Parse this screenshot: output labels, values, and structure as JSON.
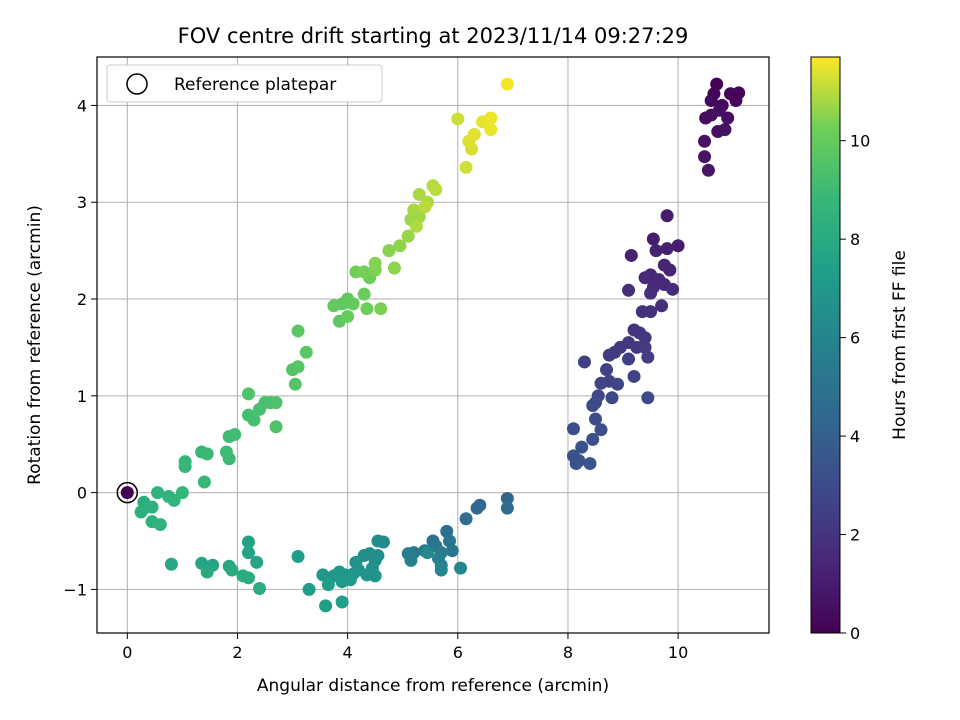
{
  "chart_data": {
    "type": "scatter",
    "title": "FOV centre drift starting at 2023/11/14 09:27:29",
    "xlabel": "Angular distance from reference (arcmin)",
    "ylabel": "Rotation from reference (arcmin)",
    "xlim": [
      -0.55,
      11.65
    ],
    "ylim": [
      -1.45,
      4.5
    ],
    "xticks": [
      0,
      2,
      4,
      6,
      8,
      10
    ],
    "yticks": [
      -1,
      0,
      1,
      2,
      3,
      4
    ],
    "grid": true,
    "legend": {
      "location": "upper-left",
      "entries": [
        "Reference platepar"
      ]
    },
    "colorbar": {
      "label": "Hours from first FF file",
      "min": 0,
      "max": 11.7,
      "ticks": [
        0,
        2,
        4,
        6,
        8,
        10
      ],
      "colormap": "viridis"
    },
    "reference_point": {
      "x": 0,
      "y": 0
    },
    "points": [
      {
        "x": 10.7,
        "y": 4.22,
        "c": 0.1
      },
      {
        "x": 10.65,
        "y": 4.12,
        "c": 0.15
      },
      {
        "x": 10.95,
        "y": 4.12,
        "c": 0.2
      },
      {
        "x": 11.05,
        "y": 4.05,
        "c": 0.25
      },
      {
        "x": 10.6,
        "y": 4.05,
        "c": 0.3
      },
      {
        "x": 10.8,
        "y": 4.0,
        "c": 0.35
      },
      {
        "x": 10.5,
        "y": 3.87,
        "c": 0.4
      },
      {
        "x": 10.75,
        "y": 3.95,
        "c": 0.45
      },
      {
        "x": 10.9,
        "y": 3.87,
        "c": 0.5
      },
      {
        "x": 10.72,
        "y": 3.73,
        "c": 0.55
      },
      {
        "x": 10.85,
        "y": 3.75,
        "c": 0.6
      },
      {
        "x": 10.48,
        "y": 3.63,
        "c": 0.65
      },
      {
        "x": 10.48,
        "y": 3.47,
        "c": 0.7
      },
      {
        "x": 10.55,
        "y": 3.33,
        "c": 0.75
      },
      {
        "x": 11.1,
        "y": 4.13,
        "c": 0.2
      },
      {
        "x": 10.6,
        "y": 3.9,
        "c": 0.5
      },
      {
        "x": 9.8,
        "y": 2.86,
        "c": 1.0
      },
      {
        "x": 9.55,
        "y": 2.62,
        "c": 1.05
      },
      {
        "x": 10.0,
        "y": 2.55,
        "c": 1.1
      },
      {
        "x": 9.8,
        "y": 2.52,
        "c": 1.15
      },
      {
        "x": 9.6,
        "y": 2.5,
        "c": 1.2
      },
      {
        "x": 9.15,
        "y": 2.45,
        "c": 1.25
      },
      {
        "x": 9.75,
        "y": 2.35,
        "c": 1.3
      },
      {
        "x": 9.85,
        "y": 2.3,
        "c": 1.35
      },
      {
        "x": 9.5,
        "y": 2.25,
        "c": 1.4
      },
      {
        "x": 9.65,
        "y": 2.2,
        "c": 1.45
      },
      {
        "x": 9.75,
        "y": 2.15,
        "c": 1.5
      },
      {
        "x": 9.4,
        "y": 2.22,
        "c": 1.55
      },
      {
        "x": 9.55,
        "y": 2.12,
        "c": 1.6
      },
      {
        "x": 9.9,
        "y": 2.1,
        "c": 1.65
      },
      {
        "x": 9.1,
        "y": 2.09,
        "c": 1.7
      },
      {
        "x": 9.5,
        "y": 2.06,
        "c": 1.75
      },
      {
        "x": 9.7,
        "y": 1.93,
        "c": 1.8
      },
      {
        "x": 9.35,
        "y": 1.87,
        "c": 1.85
      },
      {
        "x": 9.5,
        "y": 1.87,
        "c": 1.9
      },
      {
        "x": 9.2,
        "y": 1.68,
        "c": 1.95
      },
      {
        "x": 9.3,
        "y": 1.65,
        "c": 2.0
      },
      {
        "x": 9.4,
        "y": 1.6,
        "c": 2.05
      },
      {
        "x": 9.1,
        "y": 1.55,
        "c": 2.1
      },
      {
        "x": 8.95,
        "y": 1.5,
        "c": 2.15
      },
      {
        "x": 9.25,
        "y": 1.5,
        "c": 2.2
      },
      {
        "x": 9.4,
        "y": 1.5,
        "c": 2.25
      },
      {
        "x": 8.85,
        "y": 1.45,
        "c": 2.3
      },
      {
        "x": 8.75,
        "y": 1.42,
        "c": 2.35
      },
      {
        "x": 9.45,
        "y": 1.4,
        "c": 2.4
      },
      {
        "x": 9.1,
        "y": 1.38,
        "c": 2.45
      },
      {
        "x": 8.3,
        "y": 1.35,
        "c": 2.5
      },
      {
        "x": 8.7,
        "y": 1.27,
        "c": 2.55
      },
      {
        "x": 9.2,
        "y": 1.2,
        "c": 2.6
      },
      {
        "x": 8.75,
        "y": 1.15,
        "c": 2.65
      },
      {
        "x": 8.6,
        "y": 1.13,
        "c": 2.7
      },
      {
        "x": 8.9,
        "y": 1.12,
        "c": 2.75
      },
      {
        "x": 8.55,
        "y": 1.0,
        "c": 2.8
      },
      {
        "x": 8.8,
        "y": 0.98,
        "c": 2.85
      },
      {
        "x": 9.45,
        "y": 0.98,
        "c": 2.9
      },
      {
        "x": 8.5,
        "y": 0.93,
        "c": 2.95
      },
      {
        "x": 8.45,
        "y": 0.9,
        "c": 3.0
      },
      {
        "x": 8.5,
        "y": 0.76,
        "c": 3.05
      },
      {
        "x": 8.1,
        "y": 0.66,
        "c": 3.1
      },
      {
        "x": 8.6,
        "y": 0.65,
        "c": 3.15
      },
      {
        "x": 8.45,
        "y": 0.55,
        "c": 3.2
      },
      {
        "x": 8.25,
        "y": 0.47,
        "c": 3.25
      },
      {
        "x": 8.1,
        "y": 0.38,
        "c": 3.3
      },
      {
        "x": 8.2,
        "y": 0.33,
        "c": 3.35
      },
      {
        "x": 8.15,
        "y": 0.3,
        "c": 3.4
      },
      {
        "x": 8.4,
        "y": 0.3,
        "c": 3.45
      },
      {
        "x": 6.9,
        "y": -0.06,
        "c": 4.3
      },
      {
        "x": 6.4,
        "y": -0.13,
        "c": 4.4
      },
      {
        "x": 6.35,
        "y": -0.16,
        "c": 4.5
      },
      {
        "x": 6.9,
        "y": -0.16,
        "c": 4.6
      },
      {
        "x": 6.15,
        "y": -0.27,
        "c": 4.7
      },
      {
        "x": 5.8,
        "y": -0.4,
        "c": 4.8
      },
      {
        "x": 5.55,
        "y": -0.5,
        "c": 4.9
      },
      {
        "x": 5.85,
        "y": -0.5,
        "c": 5.0
      },
      {
        "x": 5.6,
        "y": -0.55,
        "c": 5.1
      },
      {
        "x": 5.9,
        "y": -0.6,
        "c": 5.2
      },
      {
        "x": 5.4,
        "y": -0.6,
        "c": 5.3
      },
      {
        "x": 5.2,
        "y": -0.62,
        "c": 5.4
      },
      {
        "x": 5.7,
        "y": -0.62,
        "c": 5.5
      },
      {
        "x": 5.1,
        "y": -0.63,
        "c": 5.6
      },
      {
        "x": 5.65,
        "y": -0.68,
        "c": 5.7
      },
      {
        "x": 5.15,
        "y": -0.7,
        "c": 5.8
      },
      {
        "x": 5.7,
        "y": -0.75,
        "c": 5.9
      },
      {
        "x": 6.05,
        "y": -0.78,
        "c": 6.0
      },
      {
        "x": 5.7,
        "y": -0.8,
        "c": 6.1
      },
      {
        "x": 5.45,
        "y": -0.62,
        "c": 6.2
      },
      {
        "x": 4.65,
        "y": -0.51,
        "c": 6.3
      },
      {
        "x": 4.55,
        "y": -0.5,
        "c": 6.35
      },
      {
        "x": 4.55,
        "y": -0.65,
        "c": 6.4
      },
      {
        "x": 4.4,
        "y": -0.63,
        "c": 6.45
      },
      {
        "x": 4.3,
        "y": -0.65,
        "c": 6.5
      },
      {
        "x": 4.5,
        "y": -0.7,
        "c": 6.55
      },
      {
        "x": 4.15,
        "y": -0.72,
        "c": 6.6
      },
      {
        "x": 4.45,
        "y": -0.78,
        "c": 6.65
      },
      {
        "x": 4.2,
        "y": -0.8,
        "c": 6.7
      },
      {
        "x": 4.35,
        "y": -0.85,
        "c": 6.75
      },
      {
        "x": 4.5,
        "y": -0.86,
        "c": 6.8
      },
      {
        "x": 4.1,
        "y": -0.84,
        "c": 6.85
      },
      {
        "x": 3.95,
        "y": -0.85,
        "c": 6.9
      },
      {
        "x": 3.85,
        "y": -0.82,
        "c": 6.95
      },
      {
        "x": 3.75,
        "y": -0.86,
        "c": 7.0
      },
      {
        "x": 3.55,
        "y": -0.85,
        "c": 7.05
      },
      {
        "x": 4.05,
        "y": -0.9,
        "c": 7.1
      },
      {
        "x": 3.9,
        "y": -0.92,
        "c": 7.15
      },
      {
        "x": 3.65,
        "y": -0.95,
        "c": 7.2
      },
      {
        "x": 3.3,
        "y": -1.0,
        "c": 7.25
      },
      {
        "x": 3.1,
        "y": -0.66,
        "c": 7.3
      },
      {
        "x": 3.9,
        "y": -1.13,
        "c": 7.35
      },
      {
        "x": 3.6,
        "y": -1.17,
        "c": 7.4
      },
      {
        "x": 2.2,
        "y": -0.51,
        "c": 7.6
      },
      {
        "x": 2.2,
        "y": -0.62,
        "c": 7.65
      },
      {
        "x": 2.35,
        "y": -0.72,
        "c": 7.7
      },
      {
        "x": 1.35,
        "y": -0.73,
        "c": 7.75
      },
      {
        "x": 1.55,
        "y": -0.75,
        "c": 7.8
      },
      {
        "x": 1.85,
        "y": -0.76,
        "c": 7.85
      },
      {
        "x": 0.8,
        "y": -0.74,
        "c": 7.9
      },
      {
        "x": 1.45,
        "y": -0.82,
        "c": 7.95
      },
      {
        "x": 1.9,
        "y": -0.8,
        "c": 8.0
      },
      {
        "x": 2.1,
        "y": -0.86,
        "c": 8.05
      },
      {
        "x": 2.2,
        "y": -0.88,
        "c": 8.1
      },
      {
        "x": 2.4,
        "y": -0.99,
        "c": 8.15
      },
      {
        "x": 0.3,
        "y": -0.1,
        "c": 8.2
      },
      {
        "x": 0.35,
        "y": -0.15,
        "c": 8.25
      },
      {
        "x": 0.25,
        "y": -0.2,
        "c": 8.3
      },
      {
        "x": 0.45,
        "y": -0.15,
        "c": 8.35
      },
      {
        "x": 0.45,
        "y": -0.3,
        "c": 8.4
      },
      {
        "x": 0.6,
        "y": -0.33,
        "c": 8.45
      },
      {
        "x": 0.55,
        "y": -0.0,
        "c": 8.5
      },
      {
        "x": 0.75,
        "y": -0.04,
        "c": 8.55
      },
      {
        "x": 0.85,
        "y": -0.08,
        "c": 8.6
      },
      {
        "x": 1.0,
        "y": 0.0,
        "c": 8.65
      },
      {
        "x": 1.05,
        "y": 0.27,
        "c": 8.7
      },
      {
        "x": 1.05,
        "y": 0.32,
        "c": 8.75
      },
      {
        "x": 1.4,
        "y": 0.11,
        "c": 8.8
      },
      {
        "x": 1.35,
        "y": 0.42,
        "c": 8.85
      },
      {
        "x": 1.45,
        "y": 0.4,
        "c": 8.9
      },
      {
        "x": 1.85,
        "y": 0.35,
        "c": 8.95
      },
      {
        "x": 1.8,
        "y": 0.42,
        "c": 9.0
      },
      {
        "x": 1.85,
        "y": 0.58,
        "c": 9.05
      },
      {
        "x": 1.95,
        "y": 0.6,
        "c": 9.1
      },
      {
        "x": 2.2,
        "y": 0.8,
        "c": 9.15
      },
      {
        "x": 2.3,
        "y": 0.75,
        "c": 9.2
      },
      {
        "x": 2.4,
        "y": 0.86,
        "c": 9.25
      },
      {
        "x": 2.5,
        "y": 0.93,
        "c": 9.3
      },
      {
        "x": 2.6,
        "y": 0.93,
        "c": 9.35
      },
      {
        "x": 2.7,
        "y": 0.93,
        "c": 9.4
      },
      {
        "x": 2.2,
        "y": 1.02,
        "c": 9.45
      },
      {
        "x": 2.7,
        "y": 0.68,
        "c": 9.5
      },
      {
        "x": 3.0,
        "y": 1.27,
        "c": 9.55
      },
      {
        "x": 3.05,
        "y": 1.12,
        "c": 9.6
      },
      {
        "x": 3.1,
        "y": 1.3,
        "c": 9.65
      },
      {
        "x": 3.25,
        "y": 1.45,
        "c": 9.7
      },
      {
        "x": 3.1,
        "y": 1.67,
        "c": 9.75
      },
      {
        "x": 3.85,
        "y": 1.77,
        "c": 9.8
      },
      {
        "x": 3.9,
        "y": 1.95,
        "c": 9.85
      },
      {
        "x": 4.0,
        "y": 2.0,
        "c": 9.9
      },
      {
        "x": 3.75,
        "y": 1.93,
        "c": 9.95
      },
      {
        "x": 4.1,
        "y": 1.95,
        "c": 10.0
      },
      {
        "x": 4.0,
        "y": 1.82,
        "c": 10.05
      },
      {
        "x": 4.3,
        "y": 2.05,
        "c": 10.1
      },
      {
        "x": 4.35,
        "y": 1.9,
        "c": 10.15
      },
      {
        "x": 4.4,
        "y": 2.22,
        "c": 10.2
      },
      {
        "x": 4.15,
        "y": 2.28,
        "c": 10.25
      },
      {
        "x": 4.3,
        "y": 2.28,
        "c": 10.3
      },
      {
        "x": 4.6,
        "y": 1.9,
        "c": 10.35
      },
      {
        "x": 4.5,
        "y": 2.3,
        "c": 10.4
      },
      {
        "x": 4.5,
        "y": 2.37,
        "c": 10.45
      },
      {
        "x": 4.75,
        "y": 2.5,
        "c": 10.5
      },
      {
        "x": 4.85,
        "y": 2.32,
        "c": 10.55
      },
      {
        "x": 4.95,
        "y": 2.55,
        "c": 10.6
      },
      {
        "x": 5.1,
        "y": 2.65,
        "c": 10.65
      },
      {
        "x": 5.15,
        "y": 2.82,
        "c": 10.7
      },
      {
        "x": 5.3,
        "y": 2.85,
        "c": 10.75
      },
      {
        "x": 5.2,
        "y": 2.92,
        "c": 10.8
      },
      {
        "x": 5.3,
        "y": 3.08,
        "c": 10.85
      },
      {
        "x": 5.45,
        "y": 3.0,
        "c": 10.9
      },
      {
        "x": 5.55,
        "y": 3.17,
        "c": 10.95
      },
      {
        "x": 5.6,
        "y": 3.13,
        "c": 11.0
      },
      {
        "x": 5.25,
        "y": 2.75,
        "c": 10.9
      },
      {
        "x": 5.4,
        "y": 2.95,
        "c": 11.0
      },
      {
        "x": 6.0,
        "y": 3.86,
        "c": 11.2
      },
      {
        "x": 6.15,
        "y": 3.36,
        "c": 11.25
      },
      {
        "x": 6.25,
        "y": 3.55,
        "c": 11.3
      },
      {
        "x": 6.2,
        "y": 3.63,
        "c": 11.35
      },
      {
        "x": 6.3,
        "y": 3.7,
        "c": 11.4
      },
      {
        "x": 6.45,
        "y": 3.83,
        "c": 11.45
      },
      {
        "x": 6.6,
        "y": 3.75,
        "c": 11.5
      },
      {
        "x": 6.6,
        "y": 3.87,
        "c": 11.55
      },
      {
        "x": 6.9,
        "y": 4.22,
        "c": 11.6
      },
      {
        "x": 0,
        "y": 0,
        "c": 0.0
      }
    ]
  }
}
